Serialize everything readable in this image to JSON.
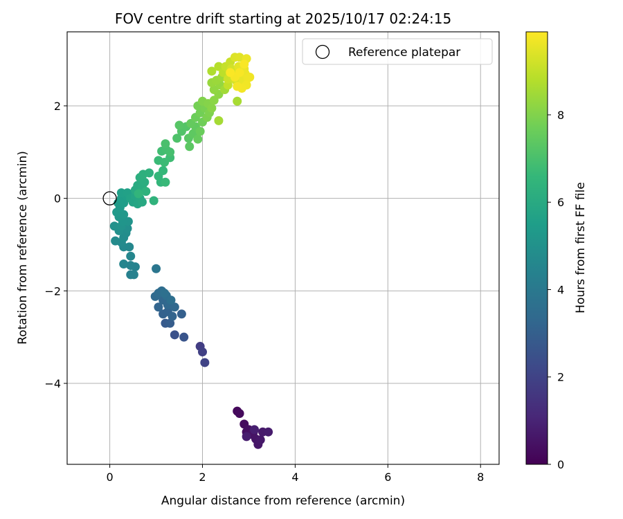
{
  "chart_data": {
    "type": "scatter",
    "title": "FOV centre drift starting at 2025/10/17 02:24:15",
    "xlabel": "Angular distance from reference (arcmin)",
    "ylabel": "Rotation from reference (arcmin)",
    "xlim": [
      -0.92,
      8.4
    ],
    "ylim": [
      -5.75,
      3.6
    ],
    "xticks": [
      0,
      2,
      4,
      6,
      8
    ],
    "xtick_labels": [
      "0",
      "2",
      "4",
      "6",
      "8"
    ],
    "yticks": [
      -4,
      -2,
      0,
      2
    ],
    "ytick_labels": [
      "−4",
      "−2",
      "0",
      "2"
    ],
    "grid": true,
    "legend": {
      "location": "top-right",
      "label": "Reference platepar"
    },
    "reference_point": {
      "x": 0,
      "y": 0
    },
    "colorbar": {
      "label": "Hours from first FF file",
      "colormap": "viridis",
      "range": [
        0,
        9.9
      ],
      "ticks": [
        0,
        2,
        4,
        6,
        8
      ],
      "tick_labels": [
        "0",
        "2",
        "4",
        "6",
        "8"
      ]
    },
    "colormap_stops": [
      "#440154",
      "#482878",
      "#3e4989",
      "#31688e",
      "#26828e",
      "#1f9e89",
      "#35b779",
      "#6ece58",
      "#b5de2b",
      "#fde725"
    ],
    "points": [
      {
        "x": 2.75,
        "y": -4.6,
        "t": 0.2
      },
      {
        "x": 2.8,
        "y": -4.65,
        "t": 0.25
      },
      {
        "x": 2.9,
        "y": -4.88,
        "t": 0.3
      },
      {
        "x": 2.95,
        "y": -5.05,
        "t": 0.35
      },
      {
        "x": 3.0,
        "y": -5.0,
        "t": 0.4
      },
      {
        "x": 3.05,
        "y": -5.1,
        "t": 0.45
      },
      {
        "x": 3.1,
        "y": -5.05,
        "t": 0.5
      },
      {
        "x": 3.15,
        "y": -5.2,
        "t": 0.55
      },
      {
        "x": 3.2,
        "y": -5.32,
        "t": 0.6
      },
      {
        "x": 3.25,
        "y": -5.22,
        "t": 0.65
      },
      {
        "x": 3.3,
        "y": -5.05,
        "t": 0.7
      },
      {
        "x": 3.42,
        "y": -5.05,
        "t": 0.75
      },
      {
        "x": 2.95,
        "y": -5.15,
        "t": 0.8
      },
      {
        "x": 3.12,
        "y": -5.0,
        "t": 0.85
      },
      {
        "x": 1.95,
        "y": -3.2,
        "t": 1.8
      },
      {
        "x": 2.0,
        "y": -3.32,
        "t": 1.9
      },
      {
        "x": 2.05,
        "y": -3.55,
        "t": 2.0
      },
      {
        "x": 1.4,
        "y": -2.95,
        "t": 2.5
      },
      {
        "x": 1.6,
        "y": -3.0,
        "t": 2.6
      },
      {
        "x": 1.2,
        "y": -2.7,
        "t": 2.8
      },
      {
        "x": 1.3,
        "y": -2.7,
        "t": 2.9
      },
      {
        "x": 1.55,
        "y": -2.5,
        "t": 3.0
      },
      {
        "x": 1.15,
        "y": -2.5,
        "t": 3.05
      },
      {
        "x": 1.25,
        "y": -2.45,
        "t": 3.1
      },
      {
        "x": 1.35,
        "y": -2.55,
        "t": 3.15
      },
      {
        "x": 1.05,
        "y": -2.35,
        "t": 3.2
      },
      {
        "x": 1.15,
        "y": -2.2,
        "t": 3.25
      },
      {
        "x": 1.25,
        "y": -2.3,
        "t": 3.3
      },
      {
        "x": 1.4,
        "y": -2.35,
        "t": 3.35
      },
      {
        "x": 0.98,
        "y": -2.12,
        "t": 3.4
      },
      {
        "x": 1.05,
        "y": -2.05,
        "t": 3.45
      },
      {
        "x": 1.12,
        "y": -2.0,
        "t": 3.5
      },
      {
        "x": 1.22,
        "y": -2.1,
        "t": 3.55
      },
      {
        "x": 1.32,
        "y": -2.2,
        "t": 3.6
      },
      {
        "x": 1.18,
        "y": -2.05,
        "t": 3.65
      },
      {
        "x": 1.0,
        "y": -1.52,
        "t": 3.9
      },
      {
        "x": 0.45,
        "y": -1.65,
        "t": 4.3
      },
      {
        "x": 0.52,
        "y": -1.65,
        "t": 4.35
      },
      {
        "x": 0.55,
        "y": -1.48,
        "t": 4.4
      },
      {
        "x": 0.45,
        "y": -1.45,
        "t": 4.45
      },
      {
        "x": 0.3,
        "y": -1.42,
        "t": 4.5
      },
      {
        "x": 0.45,
        "y": -1.25,
        "t": 4.55
      },
      {
        "x": 0.42,
        "y": -1.05,
        "t": 4.6
      },
      {
        "x": 0.3,
        "y": -1.05,
        "t": 4.65
      },
      {
        "x": 0.25,
        "y": -0.95,
        "t": 4.7
      },
      {
        "x": 0.12,
        "y": -0.92,
        "t": 4.75
      },
      {
        "x": 0.3,
        "y": -0.85,
        "t": 4.8
      },
      {
        "x": 0.35,
        "y": -0.75,
        "t": 4.85
      },
      {
        "x": 0.38,
        "y": -0.65,
        "t": 4.9
      },
      {
        "x": 0.2,
        "y": -0.7,
        "t": 4.95
      },
      {
        "x": 0.1,
        "y": -0.6,
        "t": 5.0
      },
      {
        "x": 0.25,
        "y": -0.6,
        "t": 5.05
      },
      {
        "x": 0.4,
        "y": -0.5,
        "t": 5.1
      },
      {
        "x": 0.28,
        "y": -0.5,
        "t": 5.15
      },
      {
        "x": 0.2,
        "y": -0.4,
        "t": 5.2
      },
      {
        "x": 0.3,
        "y": -0.35,
        "t": 5.25
      },
      {
        "x": 0.15,
        "y": -0.3,
        "t": 5.3
      },
      {
        "x": 0.22,
        "y": -0.2,
        "t": 5.35
      },
      {
        "x": 0.18,
        "y": -0.1,
        "t": 5.4
      },
      {
        "x": 0.3,
        "y": -0.1,
        "t": 5.45
      },
      {
        "x": 0.25,
        "y": 0.0,
        "t": 5.5
      },
      {
        "x": 0.35,
        "y": 0.05,
        "t": 5.55
      },
      {
        "x": 0.25,
        "y": 0.12,
        "t": 5.6
      },
      {
        "x": 0.38,
        "y": 0.12,
        "t": 5.65
      },
      {
        "x": 0.45,
        "y": 0.0,
        "t": 5.7
      },
      {
        "x": 0.5,
        "y": -0.08,
        "t": 5.75
      },
      {
        "x": 0.55,
        "y": 0.05,
        "t": 5.8
      },
      {
        "x": 0.6,
        "y": -0.12,
        "t": 5.85
      },
      {
        "x": 0.65,
        "y": 0.0,
        "t": 5.9
      },
      {
        "x": 0.7,
        "y": -0.08,
        "t": 5.95
      },
      {
        "x": 0.55,
        "y": 0.18,
        "t": 6.0
      },
      {
        "x": 0.6,
        "y": 0.28,
        "t": 6.05
      },
      {
        "x": 0.7,
        "y": 0.25,
        "t": 6.1
      },
      {
        "x": 0.75,
        "y": 0.35,
        "t": 6.15
      },
      {
        "x": 0.65,
        "y": 0.45,
        "t": 6.2
      },
      {
        "x": 0.72,
        "y": 0.52,
        "t": 6.25
      },
      {
        "x": 0.85,
        "y": 0.55,
        "t": 6.3
      },
      {
        "x": 0.78,
        "y": 0.15,
        "t": 6.35
      },
      {
        "x": 0.95,
        "y": -0.05,
        "t": 6.4
      },
      {
        "x": 0.62,
        "y": 0.1,
        "t": 6.45
      },
      {
        "x": 1.1,
        "y": 0.35,
        "t": 6.5
      },
      {
        "x": 1.05,
        "y": 0.48,
        "t": 6.55
      },
      {
        "x": 1.15,
        "y": 0.6,
        "t": 6.6
      },
      {
        "x": 1.2,
        "y": 0.35,
        "t": 6.65
      },
      {
        "x": 1.05,
        "y": 0.82,
        "t": 6.7
      },
      {
        "x": 1.18,
        "y": 0.78,
        "t": 6.75
      },
      {
        "x": 1.3,
        "y": 0.88,
        "t": 6.8
      },
      {
        "x": 1.12,
        "y": 1.02,
        "t": 6.85
      },
      {
        "x": 1.22,
        "y": 1.05,
        "t": 6.9
      },
      {
        "x": 1.3,
        "y": 1.0,
        "t": 6.95
      },
      {
        "x": 1.2,
        "y": 1.18,
        "t": 7.0
      },
      {
        "x": 1.45,
        "y": 1.3,
        "t": 7.1
      },
      {
        "x": 1.55,
        "y": 1.45,
        "t": 7.15
      },
      {
        "x": 1.65,
        "y": 1.55,
        "t": 7.2
      },
      {
        "x": 1.5,
        "y": 1.58,
        "t": 7.25
      },
      {
        "x": 1.7,
        "y": 1.3,
        "t": 7.3
      },
      {
        "x": 1.72,
        "y": 1.12,
        "t": 7.35
      },
      {
        "x": 1.8,
        "y": 1.4,
        "t": 7.4
      },
      {
        "x": 1.85,
        "y": 1.55,
        "t": 7.45
      },
      {
        "x": 1.75,
        "y": 1.62,
        "t": 7.5
      },
      {
        "x": 1.9,
        "y": 1.28,
        "t": 7.55
      },
      {
        "x": 1.95,
        "y": 1.45,
        "t": 7.6
      },
      {
        "x": 1.85,
        "y": 1.75,
        "t": 7.65
      },
      {
        "x": 2.0,
        "y": 1.65,
        "t": 7.7
      },
      {
        "x": 1.95,
        "y": 1.85,
        "t": 7.75
      },
      {
        "x": 1.9,
        "y": 2.0,
        "t": 7.8
      },
      {
        "x": 2.05,
        "y": 1.95,
        "t": 7.85
      },
      {
        "x": 2.1,
        "y": 1.75,
        "t": 7.9
      },
      {
        "x": 2.15,
        "y": 1.85,
        "t": 7.95
      },
      {
        "x": 2.0,
        "y": 2.1,
        "t": 8.0
      },
      {
        "x": 2.12,
        "y": 2.05,
        "t": 8.05
      },
      {
        "x": 2.2,
        "y": 1.95,
        "t": 8.1
      },
      {
        "x": 2.25,
        "y": 2.12,
        "t": 8.15
      },
      {
        "x": 2.35,
        "y": 2.25,
        "t": 8.2
      },
      {
        "x": 2.25,
        "y": 2.35,
        "t": 8.25
      },
      {
        "x": 2.38,
        "y": 2.45,
        "t": 8.3
      },
      {
        "x": 2.2,
        "y": 2.5,
        "t": 8.35
      },
      {
        "x": 2.3,
        "y": 2.55,
        "t": 8.4
      },
      {
        "x": 2.42,
        "y": 2.62,
        "t": 8.45
      },
      {
        "x": 2.48,
        "y": 2.35,
        "t": 8.5
      },
      {
        "x": 2.35,
        "y": 1.68,
        "t": 8.55
      },
      {
        "x": 2.75,
        "y": 2.1,
        "t": 8.6
      },
      {
        "x": 2.2,
        "y": 2.75,
        "t": 8.7
      },
      {
        "x": 2.35,
        "y": 2.85,
        "t": 8.8
      },
      {
        "x": 2.45,
        "y": 2.72,
        "t": 8.9
      },
      {
        "x": 2.55,
        "y": 2.45,
        "t": 9.0
      },
      {
        "x": 2.5,
        "y": 2.85,
        "t": 9.05
      },
      {
        "x": 2.6,
        "y": 2.95,
        "t": 9.1
      },
      {
        "x": 2.55,
        "y": 2.58,
        "t": 9.15
      },
      {
        "x": 2.65,
        "y": 2.6,
        "t": 9.2
      },
      {
        "x": 2.62,
        "y": 2.8,
        "t": 9.25
      },
      {
        "x": 2.72,
        "y": 2.55,
        "t": 9.3
      },
      {
        "x": 2.75,
        "y": 2.7,
        "t": 9.35
      },
      {
        "x": 2.7,
        "y": 3.05,
        "t": 9.4
      },
      {
        "x": 2.8,
        "y": 3.05,
        "t": 9.45
      },
      {
        "x": 2.78,
        "y": 2.85,
        "t": 9.5
      },
      {
        "x": 2.82,
        "y": 2.45,
        "t": 9.52
      },
      {
        "x": 2.85,
        "y": 2.65,
        "t": 9.55
      },
      {
        "x": 2.9,
        "y": 2.8,
        "t": 9.58
      },
      {
        "x": 2.88,
        "y": 2.55,
        "t": 9.6
      },
      {
        "x": 2.95,
        "y": 3.02,
        "t": 9.62
      },
      {
        "x": 2.92,
        "y": 2.7,
        "t": 9.65
      },
      {
        "x": 2.98,
        "y": 2.6,
        "t": 9.68
      },
      {
        "x": 3.02,
        "y": 2.62,
        "t": 9.7
      },
      {
        "x": 2.95,
        "y": 2.45,
        "t": 9.72
      },
      {
        "x": 2.85,
        "y": 2.38,
        "t": 9.75
      },
      {
        "x": 2.75,
        "y": 2.42,
        "t": 9.78
      },
      {
        "x": 2.7,
        "y": 2.62,
        "t": 9.8
      },
      {
        "x": 2.8,
        "y": 2.72,
        "t": 9.82
      },
      {
        "x": 2.9,
        "y": 2.9,
        "t": 9.84
      },
      {
        "x": 2.6,
        "y": 2.72,
        "t": 9.86
      }
    ]
  }
}
